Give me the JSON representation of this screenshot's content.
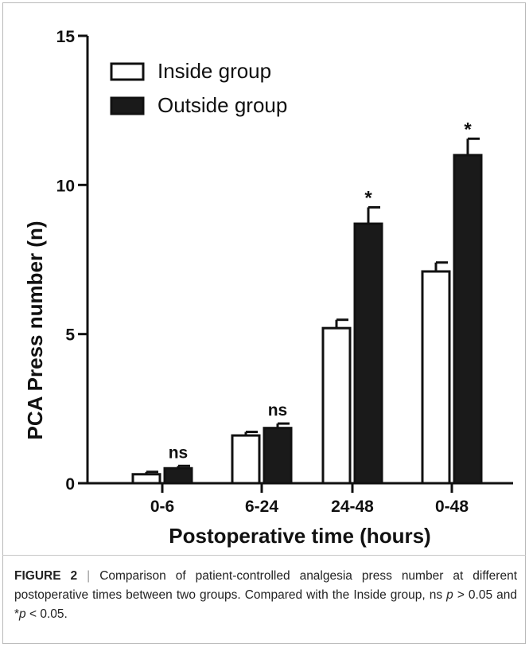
{
  "chart_data": {
    "type": "bar",
    "categories": [
      "0-6",
      "6-24",
      "24-48",
      "0-48"
    ],
    "series": [
      {
        "name": "Inside group",
        "values": [
          0.3,
          1.6,
          5.2,
          7.1
        ],
        "errors": [
          0.08,
          0.12,
          0.28,
          0.3
        ],
        "color": "#ffffff"
      },
      {
        "name": "Outside group",
        "values": [
          0.5,
          1.85,
          8.7,
          11.0
        ],
        "errors": [
          0.08,
          0.15,
          0.55,
          0.55
        ],
        "color": "#1a1a1a"
      }
    ],
    "annotations": [
      "ns",
      "ns",
      "*",
      "*"
    ],
    "xlabel": "Postoperative time (hours)",
    "ylabel": "PCA Press number (n)",
    "ylim": [
      0,
      15
    ],
    "yticks": [
      0,
      5,
      10,
      15
    ],
    "legend_position": "top-left",
    "grid": false
  },
  "caption": {
    "label": "FIGURE 2",
    "separator": "|",
    "text_part1": "Comparison of patient-controlled analgesia press number at different postoperative times between two groups. Compared with the Inside group, ns",
    "p1": "p",
    "text_part2": "> 0.05 and *",
    "p2": "p",
    "text_part3": "< 0.05."
  }
}
